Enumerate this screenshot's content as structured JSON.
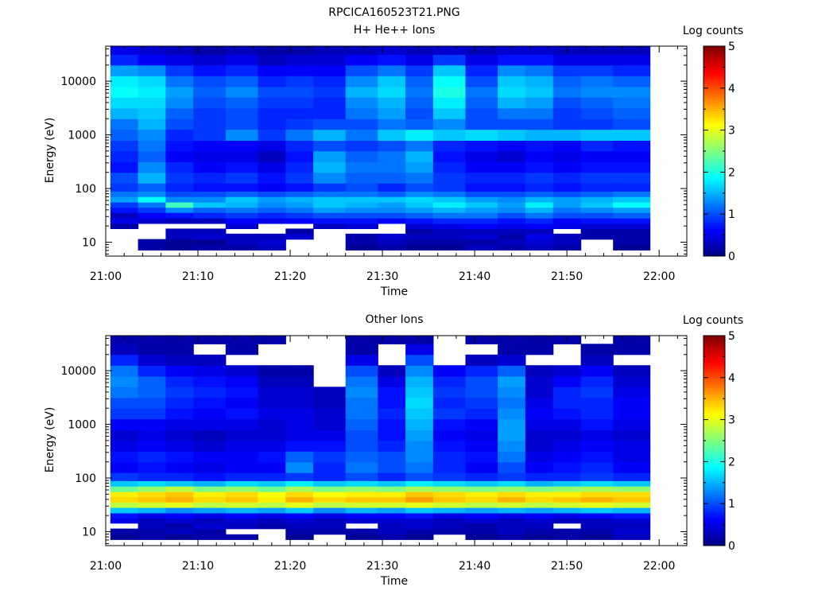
{
  "figure": {
    "title": "RPCICA160523T21.PNG"
  },
  "chart_data": [
    {
      "type": "heatmap",
      "title": "H+ He++ Ions",
      "xlabel": "Time",
      "ylabel": "Energy (eV)",
      "x_ticks": [
        "21:00",
        "21:10",
        "21:20",
        "21:30",
        "21:40",
        "21:50",
        "22:00"
      ],
      "x_range": [
        "21:00",
        "22:03"
      ],
      "y_ticks": [
        10,
        100,
        1000,
        10000
      ],
      "y_range": [
        5.5,
        45000
      ],
      "y_scale": "log",
      "colorbar": {
        "label": "Log counts",
        "min": 0,
        "max": 5,
        "ticks": [
          0,
          1,
          2,
          3,
          4,
          5
        ]
      },
      "time_bins": [
        "21:02",
        "21:05",
        "21:08",
        "21:11",
        "21:15",
        "21:18",
        "21:21",
        "21:24",
        "21:28",
        "21:31",
        "21:34",
        "21:37",
        "21:41",
        "21:44",
        "21:47",
        "21:50",
        "21:53",
        "21:57"
      ],
      "energy_bins_eV": [
        8,
        10,
        13,
        16,
        20,
        25,
        32,
        40,
        50,
        63,
        80,
        100,
        160,
        250,
        400,
        630,
        1000,
        1600,
        2500,
        4000,
        6300,
        10000,
        16000,
        25000,
        40000
      ],
      "log_counts": [
        [
          null,
          null,
          null,
          null,
          0.2,
          0.5,
          0.3,
          0.7,
          0.9,
          1.4,
          1.2,
          0.9,
          1.0,
          0.7,
          0.8,
          0.9,
          1.1,
          1.2,
          1.5,
          1.7,
          1.9,
          1.8,
          1.4,
          0.8,
          0.5
        ],
        [
          0.2,
          0.2,
          null,
          null,
          null,
          0.4,
          0.6,
          0.9,
          1.2,
          1.9,
          1.3,
          1.1,
          1.5,
          1.3,
          1.1,
          1.2,
          1.3,
          1.5,
          1.6,
          1.7,
          1.8,
          1.7,
          1.3,
          0.6,
          0.4
        ],
        [
          0.1,
          0.1,
          0.3,
          0.3,
          null,
          0.3,
          0.7,
          1.3,
          2.2,
          1.3,
          1.0,
          0.8,
          0.9,
          0.8,
          0.6,
          0.7,
          0.8,
          1.0,
          1.1,
          1.3,
          1.4,
          1.2,
          0.9,
          0.5,
          0.3
        ],
        [
          0.2,
          0.1,
          0.4,
          0.3,
          null,
          0.3,
          0.8,
          1.1,
          1.6,
          1.3,
          1.0,
          0.7,
          0.8,
          0.6,
          0.5,
          0.6,
          0.9,
          0.9,
          0.9,
          1.0,
          1.1,
          1.0,
          0.7,
          0.4,
          0.2
        ],
        [
          0.2,
          0.3,
          0.3,
          null,
          0.4,
          0.6,
          0.9,
          1.2,
          1.5,
          1.6,
          1.1,
          0.7,
          0.9,
          0.7,
          0.5,
          0.6,
          1.3,
          1.0,
          1.0,
          1.1,
          1.3,
          1.1,
          0.8,
          0.5,
          0.3
        ],
        [
          0.3,
          0.4,
          0.3,
          null,
          null,
          0.5,
          0.8,
          1.1,
          1.3,
          1.4,
          1.0,
          0.6,
          0.7,
          0.5,
          0.3,
          0.5,
          0.9,
          0.8,
          0.8,
          0.9,
          1.0,
          0.8,
          0.6,
          0.3,
          0.2
        ],
        [
          null,
          null,
          0.4,
          0.2,
          null,
          0.6,
          0.9,
          1.2,
          1.4,
          1.5,
          1.1,
          0.7,
          0.9,
          0.8,
          0.7,
          0.8,
          1.2,
          0.9,
          0.8,
          0.9,
          1.0,
          0.9,
          0.6,
          0.4,
          0.2
        ],
        [
          null,
          null,
          null,
          null,
          0.3,
          0.7,
          1.0,
          1.4,
          1.6,
          1.6,
          1.2,
          0.9,
          1.3,
          1.5,
          1.4,
          1.0,
          1.5,
          1.0,
          0.8,
          0.8,
          0.9,
          0.8,
          0.6,
          0.4,
          0.3
        ],
        [
          0.1,
          0.2,
          0.2,
          null,
          0.4,
          0.7,
          1.0,
          1.3,
          1.5,
          1.6,
          1.2,
          1.0,
          1.1,
          1.2,
          1.1,
          0.9,
          1.2,
          1.0,
          1.2,
          1.3,
          1.5,
          1.3,
          1.0,
          0.6,
          0.3
        ],
        [
          0.2,
          0.3,
          0.4,
          null,
          null,
          0.6,
          1.0,
          1.3,
          1.4,
          1.6,
          1.1,
          0.8,
          1.1,
          1.2,
          1.2,
          1.0,
          1.6,
          1.2,
          1.4,
          1.5,
          1.7,
          1.6,
          1.2,
          0.7,
          0.4
        ],
        [
          0.1,
          0.2,
          0.3,
          0.2,
          0.4,
          0.7,
          1.1,
          1.4,
          1.6,
          1.7,
          1.3,
          1.0,
          1.2,
          1.4,
          1.5,
          1.2,
          1.8,
          1.1,
          1.0,
          1.1,
          1.2,
          1.1,
          0.9,
          0.5,
          0.3
        ],
        [
          0.1,
          0.2,
          0.3,
          0.3,
          0.5,
          0.8,
          1.2,
          1.5,
          1.8,
          1.6,
          1.2,
          0.9,
          0.9,
          0.8,
          0.7,
          0.8,
          1.6,
          1.3,
          1.6,
          1.8,
          2.0,
          1.9,
          1.6,
          0.9,
          0.4
        ],
        [
          0.3,
          0.2,
          0.4,
          0.3,
          0.6,
          0.8,
          1.2,
          1.4,
          1.6,
          1.4,
          1.0,
          0.7,
          0.8,
          0.6,
          0.5,
          0.7,
          1.7,
          1.0,
          1.0,
          1.1,
          1.2,
          1.0,
          0.8,
          0.5,
          0.3
        ],
        [
          0.2,
          0.3,
          0.2,
          0.3,
          0.5,
          0.7,
          1.0,
          1.3,
          1.4,
          1.3,
          1.0,
          0.7,
          0.8,
          0.6,
          0.4,
          0.6,
          1.6,
          1.0,
          1.2,
          1.5,
          1.7,
          1.6,
          1.3,
          0.7,
          0.4
        ],
        [
          0.3,
          0.4,
          0.5,
          0.3,
          0.6,
          0.8,
          1.2,
          1.5,
          1.8,
          1.5,
          1.1,
          0.8,
          0.9,
          0.7,
          0.6,
          0.7,
          1.5,
          1.0,
          1.2,
          1.4,
          1.6,
          1.5,
          1.2,
          0.7,
          0.4
        ],
        [
          0.2,
          0.3,
          0.3,
          null,
          0.5,
          0.6,
          1.0,
          1.2,
          1.4,
          1.4,
          1.0,
          0.7,
          0.8,
          0.6,
          0.5,
          0.6,
          1.5,
          0.9,
          0.9,
          1.0,
          1.2,
          1.1,
          0.9,
          0.5,
          0.3
        ],
        [
          null,
          null,
          0.2,
          0.2,
          0.4,
          0.7,
          1.0,
          1.3,
          1.6,
          1.5,
          1.1,
          0.8,
          0.9,
          0.7,
          0.6,
          0.8,
          1.6,
          0.9,
          1.0,
          1.1,
          1.3,
          1.2,
          0.9,
          0.5,
          0.3
        ],
        [
          0.1,
          0.2,
          0.2,
          0.2,
          0.4,
          0.7,
          1.1,
          1.4,
          1.9,
          1.6,
          1.2,
          0.8,
          0.9,
          0.7,
          0.6,
          0.7,
          1.6,
          1.0,
          1.1,
          1.2,
          1.3,
          1.1,
          0.8,
          0.5,
          0.3
        ]
      ]
    },
    {
      "type": "heatmap",
      "title": "Other Ions",
      "xlabel": "Time",
      "ylabel": "Energy (eV)",
      "x_ticks": [
        "21:00",
        "21:10",
        "21:20",
        "21:30",
        "21:40",
        "21:50",
        "22:00"
      ],
      "x_range": [
        "21:00",
        "22:03"
      ],
      "y_ticks": [
        10,
        100,
        1000,
        10000
      ],
      "y_range": [
        5.5,
        45000
      ],
      "y_scale": "log",
      "colorbar": {
        "label": "Log counts",
        "min": 0,
        "max": 5,
        "ticks": [
          0,
          1,
          2,
          3,
          4,
          5
        ]
      },
      "time_bins": [
        "21:02",
        "21:05",
        "21:08",
        "21:11",
        "21:15",
        "21:18",
        "21:21",
        "21:24",
        "21:28",
        "21:31",
        "21:34",
        "21:37",
        "21:41",
        "21:44",
        "21:47",
        "21:50",
        "21:53",
        "21:57"
      ],
      "energy_bins_eV": [
        8,
        10,
        13,
        16,
        20,
        25,
        32,
        40,
        50,
        63,
        80,
        100,
        160,
        250,
        400,
        630,
        1000,
        1600,
        2500,
        4000,
        6300,
        10000,
        16000,
        25000,
        40000
      ],
      "log_counts": [
        [
          0.1,
          0.2,
          null,
          0.5,
          0.7,
          1.6,
          2.8,
          3.3,
          3.2,
          2.4,
          1.6,
          0.9,
          0.6,
          0.7,
          0.5,
          0.4,
          0.6,
          0.9,
          1.0,
          1.2,
          1.3,
          1.2,
          0.8,
          0.3,
          0.2
        ],
        [
          0.2,
          0.2,
          0.3,
          0.3,
          0.5,
          1.5,
          2.9,
          3.4,
          3.3,
          2.6,
          1.7,
          0.8,
          0.7,
          0.8,
          0.6,
          0.5,
          0.6,
          0.9,
          1.0,
          1.1,
          1.1,
          0.8,
          0.4,
          0.2,
          0.2
        ],
        [
          0.1,
          0.3,
          0.2,
          0.4,
          0.6,
          1.3,
          3.0,
          3.5,
          3.4,
          2.8,
          1.6,
          0.8,
          0.6,
          0.7,
          0.5,
          0.4,
          0.5,
          0.7,
          0.8,
          0.9,
          0.8,
          0.6,
          0.3,
          0.2,
          0.2
        ],
        [
          0.2,
          0.2,
          0.4,
          0.3,
          0.5,
          1.4,
          2.8,
          3.3,
          3.2,
          2.5,
          1.5,
          0.7,
          0.5,
          0.6,
          0.4,
          0.3,
          0.5,
          0.6,
          0.7,
          0.8,
          0.7,
          0.5,
          0.3,
          null,
          0.2
        ],
        [
          0.2,
          null,
          0.3,
          0.4,
          0.6,
          1.5,
          2.9,
          3.4,
          3.3,
          2.6,
          1.7,
          0.8,
          0.6,
          0.6,
          0.5,
          0.4,
          0.5,
          0.7,
          0.6,
          0.7,
          0.6,
          0.4,
          null,
          0.2,
          0.2
        ],
        [
          null,
          null,
          0.2,
          0.3,
          0.5,
          1.4,
          2.8,
          3.2,
          3.1,
          2.4,
          1.6,
          0.8,
          0.6,
          0.7,
          0.5,
          0.4,
          0.4,
          0.5,
          0.4,
          0.4,
          0.3,
          0.2,
          null,
          null,
          0.2
        ],
        [
          0.1,
          0.2,
          0.3,
          0.4,
          0.6,
          1.6,
          3.0,
          3.5,
          3.3,
          2.7,
          1.8,
          0.9,
          1.3,
          1.1,
          0.7,
          0.5,
          0.5,
          0.5,
          0.4,
          0.4,
          0.3,
          0.2,
          null,
          null,
          null
        ],
        [
          null,
          0.2,
          0.3,
          0.3,
          0.5,
          1.3,
          2.8,
          3.3,
          3.1,
          2.5,
          1.6,
          0.8,
          0.8,
          0.9,
          0.7,
          0.5,
          0.4,
          0.4,
          0.3,
          0.3,
          null,
          null,
          null,
          null,
          null
        ],
        [
          0.1,
          0.2,
          null,
          0.4,
          0.6,
          1.5,
          2.9,
          3.4,
          3.2,
          2.6,
          1.7,
          1.0,
          1.2,
          1.1,
          1.0,
          1.0,
          1.1,
          1.2,
          1.2,
          1.3,
          1.2,
          1.0,
          0.5,
          0.2,
          0.2
        ],
        [
          0.2,
          0.3,
          0.3,
          0.4,
          0.6,
          1.4,
          2.9,
          3.4,
          3.2,
          2.5,
          1.6,
          0.8,
          1.0,
          1.0,
          0.8,
          0.7,
          0.7,
          0.8,
          0.7,
          0.7,
          0.5,
          0.3,
          null,
          null,
          0.2
        ],
        [
          0.1,
          0.2,
          0.4,
          0.4,
          0.7,
          1.6,
          3.0,
          3.6,
          3.4,
          2.7,
          1.8,
          1.0,
          1.2,
          1.3,
          1.3,
          1.4,
          1.5,
          1.6,
          1.7,
          1.6,
          1.5,
          1.3,
          1.0,
          0.5,
          0.2
        ],
        [
          null,
          0.2,
          0.3,
          0.3,
          0.5,
          1.5,
          2.9,
          3.4,
          3.3,
          2.6,
          1.7,
          0.9,
          0.8,
          0.8,
          0.7,
          0.6,
          0.7,
          0.9,
          0.8,
          0.9,
          0.8,
          0.6,
          null,
          null,
          null
        ],
        [
          0.1,
          0.2,
          0.2,
          0.4,
          0.6,
          1.4,
          2.8,
          3.3,
          3.2,
          2.5,
          1.6,
          0.8,
          0.6,
          0.7,
          0.6,
          0.5,
          0.6,
          0.8,
          0.9,
          1.0,
          1.0,
          0.8,
          0.3,
          null,
          0.2
        ],
        [
          0.2,
          0.3,
          0.3,
          0.3,
          0.5,
          1.5,
          2.9,
          3.5,
          3.3,
          2.6,
          1.7,
          0.9,
          1.0,
          1.2,
          1.3,
          1.4,
          1.4,
          1.3,
          1.2,
          1.3,
          1.4,
          1.1,
          0.4,
          0.2,
          0.2
        ],
        [
          0.1,
          0.2,
          0.3,
          0.4,
          0.6,
          1.4,
          2.8,
          3.3,
          3.2,
          2.5,
          1.5,
          0.8,
          0.6,
          0.5,
          0.4,
          0.4,
          0.5,
          0.6,
          0.5,
          0.4,
          0.4,
          0.3,
          null,
          0.2,
          0.2
        ],
        [
          0.2,
          0.2,
          null,
          0.3,
          0.5,
          1.5,
          2.9,
          3.4,
          3.2,
          2.6,
          1.6,
          0.8,
          0.7,
          0.6,
          0.5,
          0.4,
          0.5,
          0.7,
          0.8,
          0.8,
          0.6,
          0.4,
          null,
          null,
          0.2
        ],
        [
          0.1,
          0.2,
          0.3,
          0.3,
          0.6,
          1.6,
          3.0,
          3.5,
          3.3,
          2.7,
          1.7,
          0.9,
          0.8,
          0.7,
          0.6,
          0.5,
          0.7,
          0.8,
          0.8,
          0.9,
          0.8,
          0.6,
          0.3,
          0.2,
          null
        ],
        [
          0.3,
          0.4,
          0.3,
          0.4,
          0.7,
          1.5,
          2.9,
          3.4,
          3.3,
          2.6,
          1.6,
          0.8,
          0.6,
          0.5,
          0.5,
          0.4,
          0.5,
          0.6,
          0.6,
          0.5,
          0.4,
          0.3,
          null,
          0.2,
          0.2
        ]
      ]
    }
  ]
}
